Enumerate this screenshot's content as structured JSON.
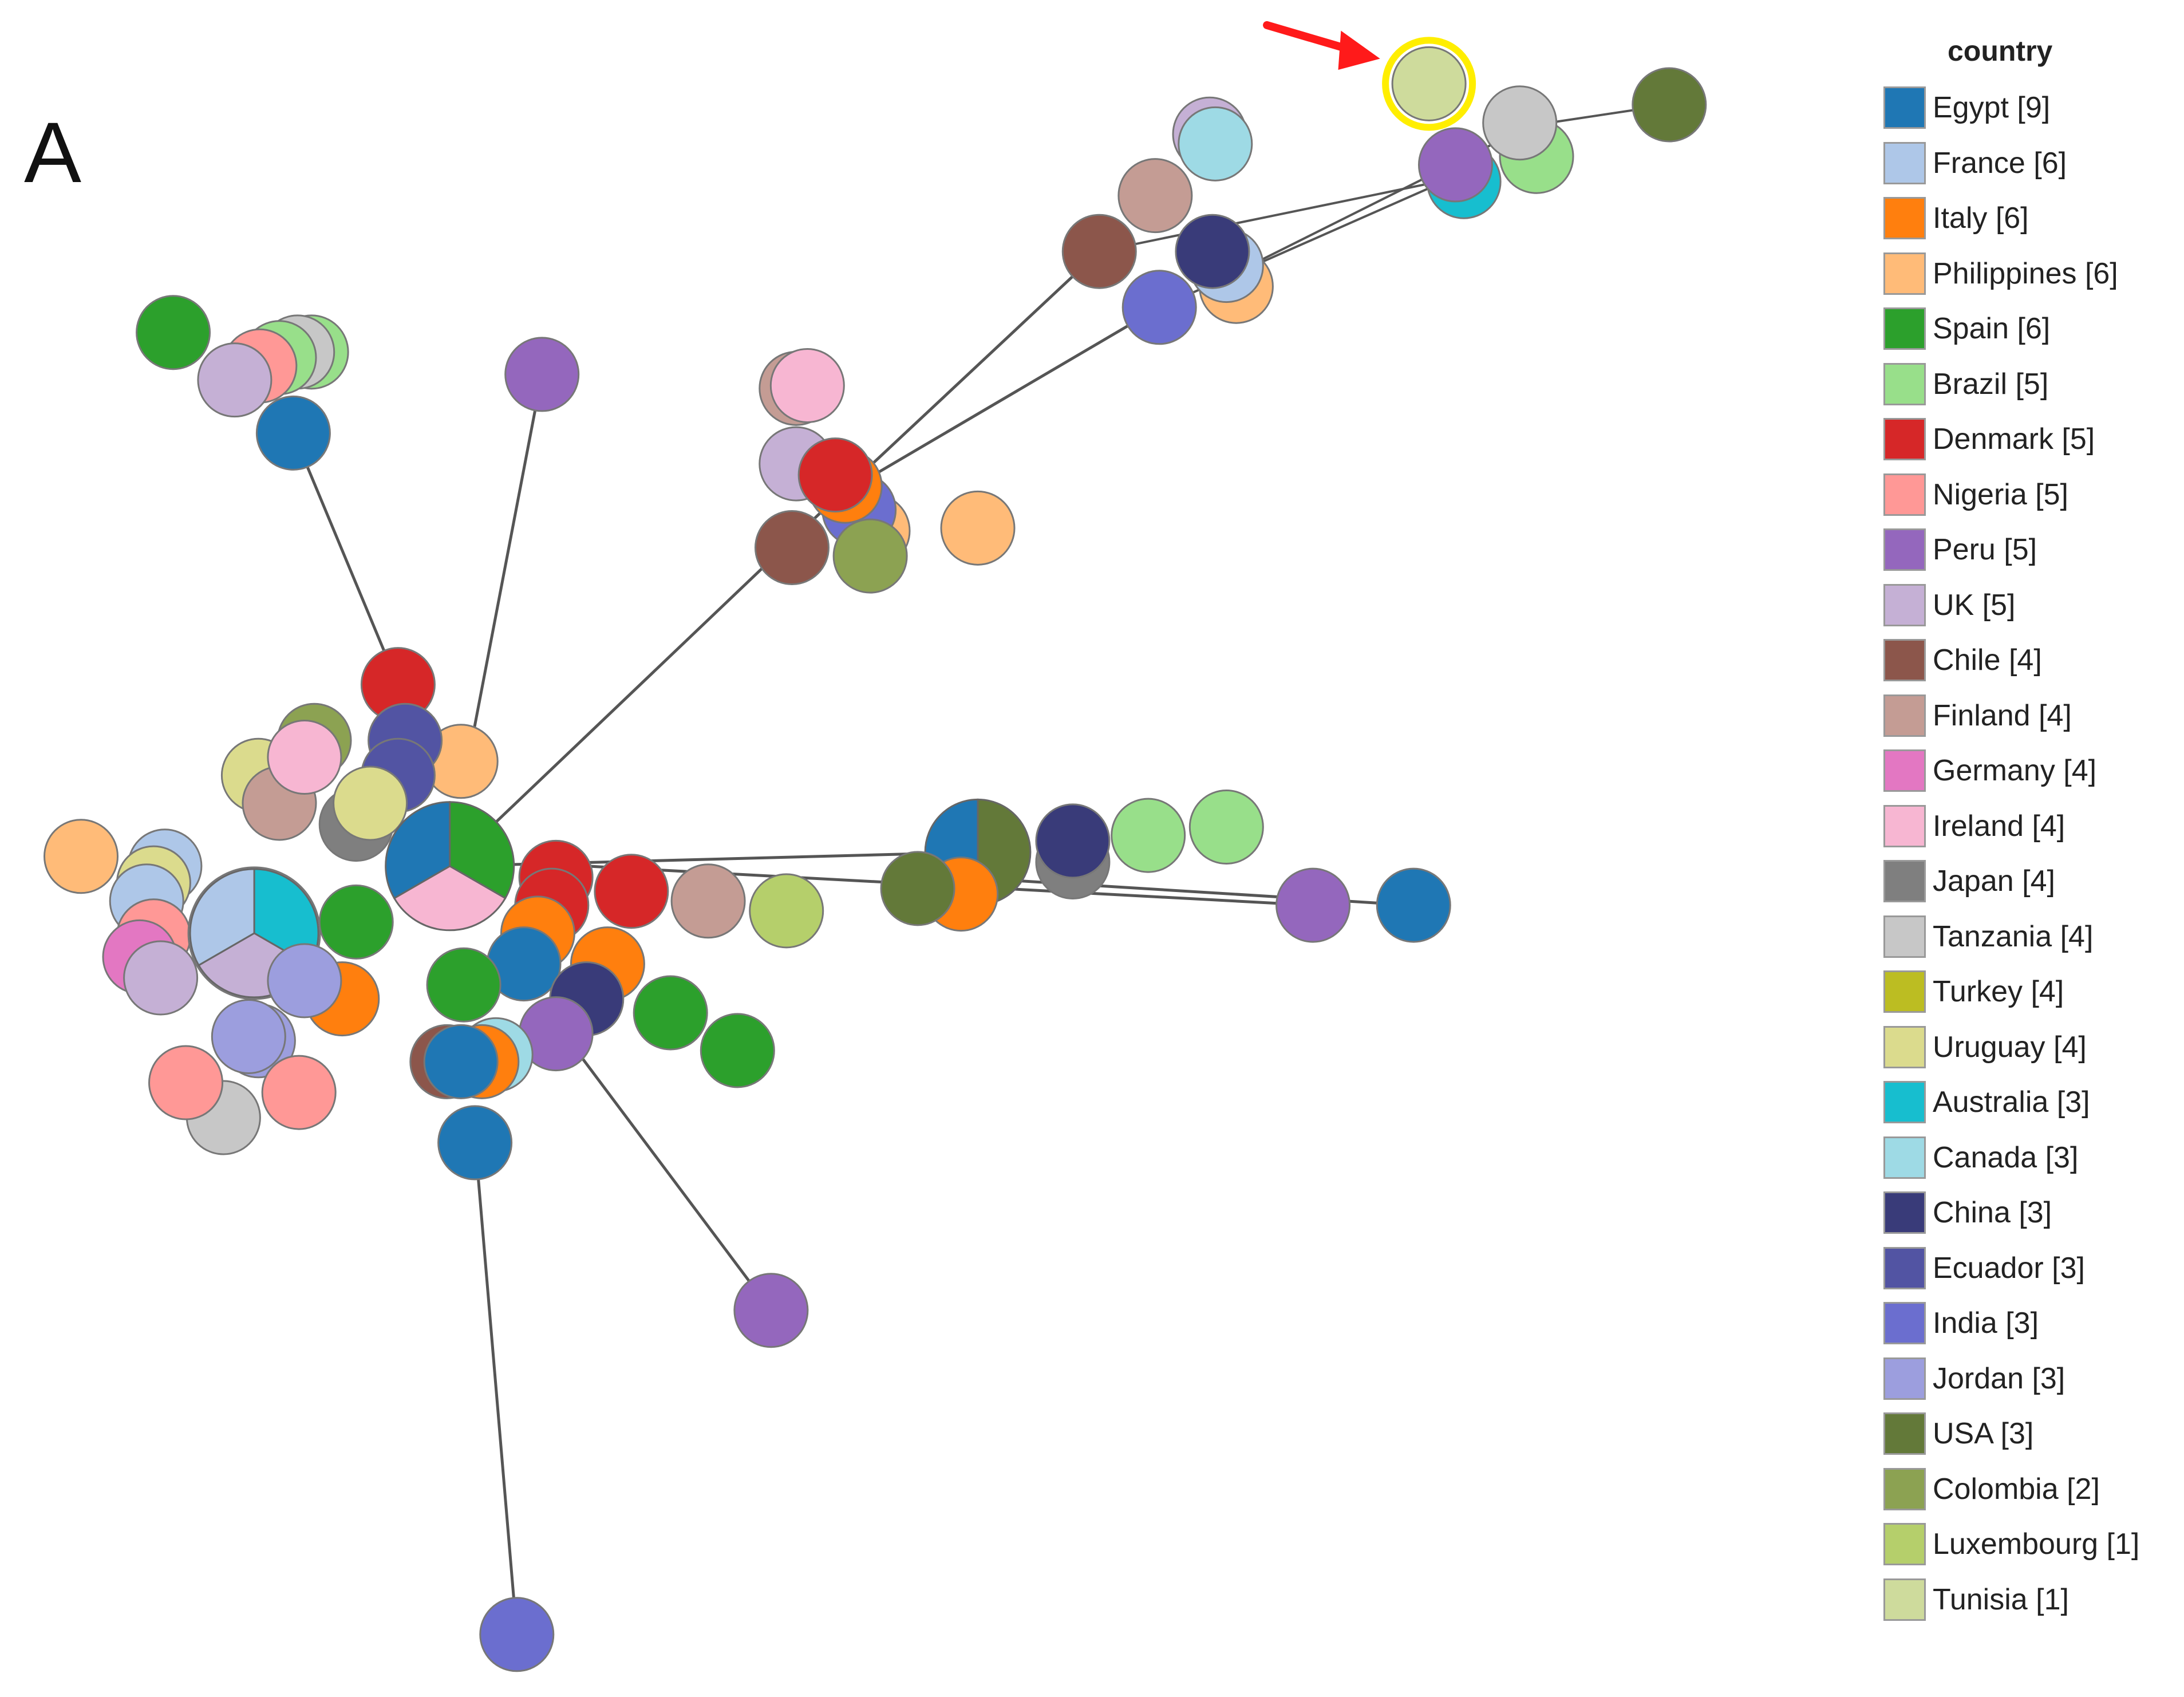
{
  "figure": {
    "panel_label": "A"
  },
  "legend": {
    "title": "country",
    "items": [
      {
        "label": "Egypt [9]",
        "color": "#1f77b4"
      },
      {
        "label": "France [6]",
        "color": "#aec7e8"
      },
      {
        "label": "Italy [6]",
        "color": "#ff7f0e"
      },
      {
        "label": "Philippines [6]",
        "color": "#ffbb78"
      },
      {
        "label": "Spain [6]",
        "color": "#2ca02c"
      },
      {
        "label": "Brazil [5]",
        "color": "#98df8a"
      },
      {
        "label": "Denmark [5]",
        "color": "#d62728"
      },
      {
        "label": "Nigeria [5]",
        "color": "#ff9896"
      },
      {
        "label": "Peru [5]",
        "color": "#9467bd"
      },
      {
        "label": "UK [5]",
        "color": "#c5b0d5"
      },
      {
        "label": "Chile [4]",
        "color": "#8c564b"
      },
      {
        "label": "Finland [4]",
        "color": "#c49c94"
      },
      {
        "label": "Germany [4]",
        "color": "#e377c2"
      },
      {
        "label": "Ireland [4]",
        "color": "#f7b6d2"
      },
      {
        "label": "Japan [4]",
        "color": "#7f7f7f"
      },
      {
        "label": "Tanzania [4]",
        "color": "#c7c7c7"
      },
      {
        "label": "Turkey [4]",
        "color": "#bcbd22"
      },
      {
        "label": "Uruguay [4]",
        "color": "#dbdb8d"
      },
      {
        "label": "Australia [3]",
        "color": "#17becf"
      },
      {
        "label": "Canada [3]",
        "color": "#9edae5"
      },
      {
        "label": "China [3]",
        "color": "#393b79"
      },
      {
        "label": "Ecuador [3]",
        "color": "#5254a3"
      },
      {
        "label": "India [3]",
        "color": "#6b6ecf"
      },
      {
        "label": "Jordan [3]",
        "color": "#9c9ede"
      },
      {
        "label": "USA [3]",
        "color": "#637939"
      },
      {
        "label": "Colombia [2]",
        "color": "#8ca252"
      },
      {
        "label": "Luxembourg [1]",
        "color": "#b5cf6b"
      },
      {
        "label": "Tunisia [1]",
        "color": "#cedb9c"
      }
    ]
  },
  "network": {
    "highlighted_node": "Tunisia",
    "edge_color": "#555555",
    "highlight_color": "#ffee00",
    "arrow_color": "#ff1a1a"
  }
}
